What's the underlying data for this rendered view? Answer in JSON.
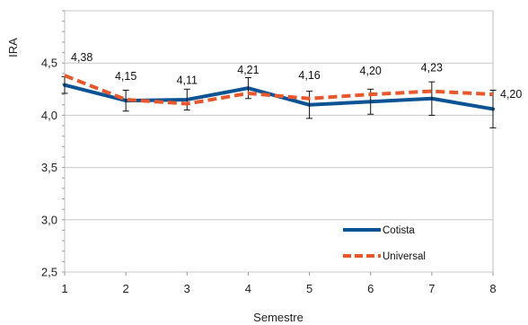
{
  "chart_data": {
    "type": "line",
    "xlabel": "Semestre",
    "ylabel": "IRA",
    "categories": [
      "1",
      "2",
      "3",
      "4",
      "5",
      "6",
      "7",
      "8"
    ],
    "ylim": [
      2.5,
      5.0
    ],
    "yticks": [
      "2,5",
      "3,0",
      "3,5",
      "4,0",
      "4,5"
    ],
    "grid": {
      "horizontal": true,
      "vertical": false
    },
    "legend_position": "bottom-right",
    "series": [
      {
        "name": "Cotista",
        "color": "#0b5394",
        "style": "solid",
        "values": [
          4.29,
          4.14,
          4.15,
          4.26,
          4.1,
          4.13,
          4.16,
          4.06
        ],
        "error": [
          0.08,
          0.1,
          0.1,
          0.1,
          0.13,
          0.12,
          0.16,
          0.18
        ]
      },
      {
        "name": "Universal",
        "color": "#e8582c",
        "style": "dashed",
        "values": [
          4.38,
          4.15,
          4.11,
          4.21,
          4.16,
          4.2,
          4.23,
          4.2
        ],
        "labels": [
          "4,38",
          "4,15",
          "4,11",
          "4,21",
          "4,16",
          "4,20",
          "4,23",
          "4,20"
        ]
      }
    ]
  }
}
